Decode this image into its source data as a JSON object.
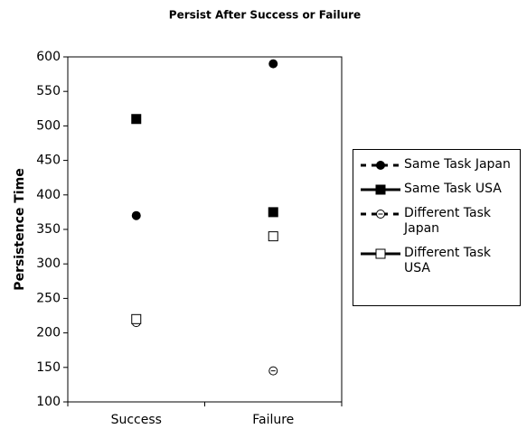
{
  "chart_data": {
    "type": "line",
    "title": "Persist After Success or Failure",
    "y_label": "Persistence Time",
    "categories": [
      "Success",
      "Failure"
    ],
    "series": [
      {
        "name": "Same Task Japan",
        "color": "#000000",
        "dashed": true,
        "marker": "filled-circle",
        "values": [
          370,
          590
        ]
      },
      {
        "name": "Same Task USA",
        "color": "#000000",
        "dashed": false,
        "marker": "filled-square",
        "values": [
          510,
          375
        ]
      },
      {
        "name": "Different Task Japan",
        "color": "#000000",
        "dashed": true,
        "marker": "open-circle",
        "values": [
          215,
          145
        ]
      },
      {
        "name": "Different Task USA",
        "color": "#000000",
        "dashed": false,
        "marker": "open-square",
        "values": [
          220,
          340
        ]
      }
    ],
    "ylim": [
      100,
      600
    ],
    "yticks": [
      100,
      150,
      200,
      250,
      300,
      350,
      400,
      450,
      500,
      550,
      600
    ],
    "legend": "right"
  }
}
